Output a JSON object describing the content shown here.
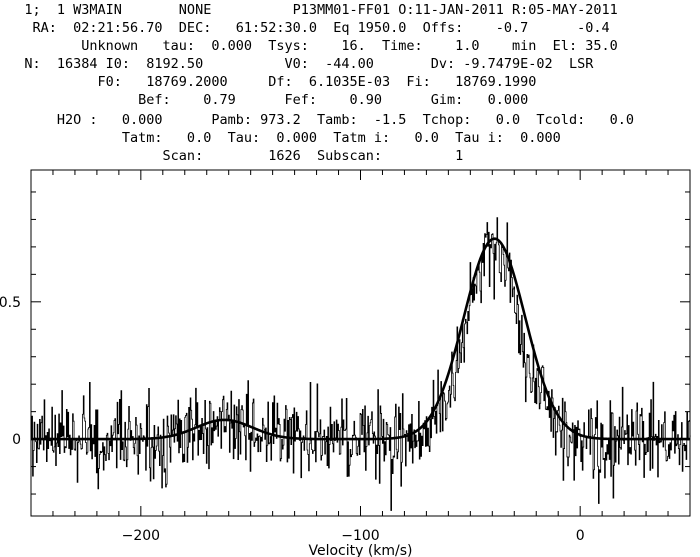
{
  "header": {
    "lines": [
      "   1;  1 W3MAIN       NONE          P13MM01-FF01 O:11-JAN-2011 R:05-MAY-2011",
      "    RA:  02:21:56.70  DEC:   61:52:30.0  Eq 1950.0  Offs:    -0.7      -0.4",
      "          Unknown   tau:  0.000  Tsys:    16.  Time:    1.0    min  El: 35.0",
      "   N:  16384 I0:  8192.50          V0:  -44.00       Dv: -9.7479E-02  LSR",
      "            F0:   18769.2000     Df:  6.1035E-03  Fi:   18769.1990",
      "                 Bef:    0.79      Fef:    0.90      Gim:   0.000",
      "       H2O :   0.000      Pamb: 973.2  Tamb:  -1.5  Tchop:   0.0  Tcold:   0.0",
      "               Tatm:   0.0  Tau:  0.000  Tatm i:   0.0  Tau i:  0.000",
      "                    Scan:        1626  Subscan:         1"
    ]
  },
  "chart_data": {
    "type": "line",
    "title": "",
    "xlabel": "Velocity (km/s)",
    "ylabel": "",
    "xlim": [
      -250,
      50
    ],
    "ylim": [
      -0.28,
      0.98
    ],
    "xticks": [
      -200,
      -100,
      0
    ],
    "xtick_labels": [
      "−200",
      "−100",
      "0"
    ],
    "yticks": [
      0,
      0.5
    ],
    "ytick_labels": [
      "0",
      "0.5"
    ],
    "grid": false,
    "legend": "none",
    "series": [
      {
        "style": "histogram",
        "x": [
          -250,
          -230,
          -210,
          -190,
          -180,
          -170,
          -160,
          -150,
          -140,
          -130,
          -120,
          -110,
          -100,
          -90,
          -80,
          -70,
          -60,
          -55,
          -50,
          -45,
          -40,
          -35,
          -30,
          -25,
          -20,
          -10,
          0,
          20,
          50
        ],
        "y": [
          0.0,
          0.0,
          0.0,
          0.0,
          0.02,
          0.05,
          0.07,
          0.05,
          0.02,
          0.0,
          0.0,
          0.0,
          0.0,
          0.0,
          0.0,
          0.02,
          0.14,
          0.3,
          0.5,
          0.66,
          0.74,
          0.68,
          0.5,
          0.3,
          0.16,
          0.03,
          0.0,
          0.0,
          0.0
        ],
        "noise_rms": 0.07,
        "color": "#000000"
      },
      {
        "style": "fit",
        "components": [
          {
            "amplitude": 0.07,
            "center": -162,
            "fwhm": 30
          },
          {
            "amplitude": 0.73,
            "center": -39,
            "fwhm": 33
          }
        ],
        "color": "#000000"
      }
    ]
  }
}
